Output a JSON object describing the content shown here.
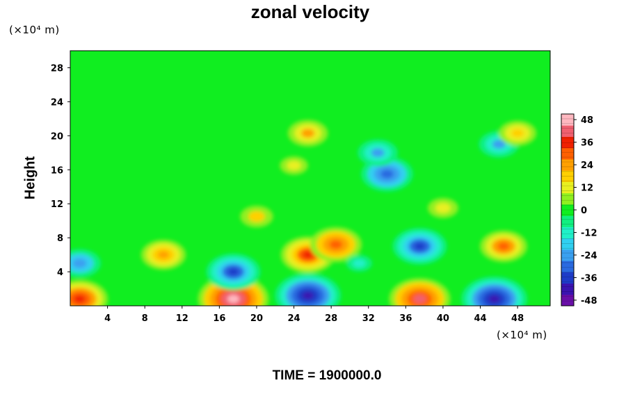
{
  "chart_data": {
    "type": "heatmap",
    "title": "zonal velocity",
    "xlabel": "",
    "ylabel": "Height",
    "x_unit": "(×10⁴ m)",
    "y_unit": "(×10⁴ m)",
    "xlim": [
      0,
      51.5
    ],
    "ylim": [
      0,
      30
    ],
    "x_ticks": [
      4,
      8,
      12,
      16,
      20,
      24,
      28,
      32,
      36,
      40,
      44,
      48
    ],
    "y_ticks": [
      4,
      8,
      12,
      16,
      20,
      24,
      28
    ],
    "colorbar": {
      "range": [
        -51,
        51
      ],
      "ticks": [
        48,
        36,
        24,
        12,
        0,
        -12,
        -24,
        -36,
        -48
      ],
      "colors": [
        "#6a0fa8",
        "#3a14b0",
        "#1e3cc8",
        "#2a6ae0",
        "#3aa0f0",
        "#30d0f0",
        "#20f0c8",
        "#10f080",
        "#10ee20",
        "#90f020",
        "#e8f020",
        "#ffd000",
        "#ffa000",
        "#ff6000",
        "#f02000",
        "#f06070",
        "#ffb8c0"
      ]
    },
    "features": [
      {
        "x": 17.5,
        "y": 0.8,
        "value": 48
      },
      {
        "x": 1,
        "y": 0.8,
        "value": 36
      },
      {
        "x": 37.5,
        "y": 0.8,
        "value": 40
      },
      {
        "x": 25.5,
        "y": 1.2,
        "value": -44
      },
      {
        "x": 45.5,
        "y": 0.8,
        "value": -44
      },
      {
        "x": 25.5,
        "y": 6,
        "value": 34
      },
      {
        "x": 28.5,
        "y": 7.2,
        "value": 32
      },
      {
        "x": 10,
        "y": 6,
        "value": 26
      },
      {
        "x": 46.5,
        "y": 7,
        "value": 28
      },
      {
        "x": 17.5,
        "y": 4,
        "value": -34
      },
      {
        "x": 37.5,
        "y": 7,
        "value": -34
      },
      {
        "x": 1,
        "y": 5,
        "value": -24
      },
      {
        "x": 31,
        "y": 5,
        "value": -10
      },
      {
        "x": 34,
        "y": 15.5,
        "value": -32
      },
      {
        "x": 33,
        "y": 18,
        "value": -22
      },
      {
        "x": 46,
        "y": 19,
        "value": -22
      },
      {
        "x": 24,
        "y": 16.5,
        "value": 12
      },
      {
        "x": 25.5,
        "y": 20.3,
        "value": 22
      },
      {
        "x": 48,
        "y": 20.3,
        "value": 20
      },
      {
        "x": 20,
        "y": 10.5,
        "value": 16
      },
      {
        "x": 40,
        "y": 11.5,
        "value": 14
      }
    ]
  },
  "footer": "TIME = 1900000.0"
}
